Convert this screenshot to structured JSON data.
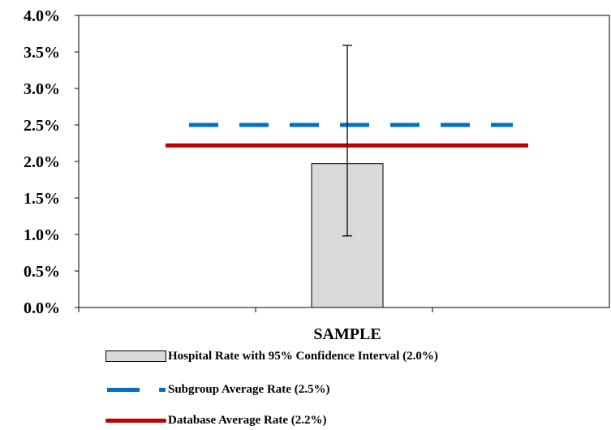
{
  "chart_data": {
    "type": "bar",
    "title": "",
    "xlabel": "",
    "ylabel": "",
    "categories": [
      "SAMPLE"
    ],
    "ylim": [
      0,
      4.0
    ],
    "y_ticks": [
      "0.0%",
      "0.5%",
      "1.0%",
      "1.5%",
      "2.0%",
      "2.5%",
      "3.0%",
      "3.5%",
      "4.0%"
    ],
    "grid": false,
    "legend_position": "bottom",
    "series": [
      {
        "name": "Hospital Rate with 95% Confidence Interval (2.0%)",
        "kind": "bar",
        "values": [
          1.97
        ],
        "ci_low": [
          0.98
        ],
        "ci_high": [
          3.59
        ],
        "color": "#d9d9d9"
      },
      {
        "name": "Subgroup Average Rate (2.5%)",
        "kind": "reference-line",
        "style": "dashed",
        "value": 2.5,
        "color": "#0070c0"
      },
      {
        "name": "Database Average Rate (2.2%)",
        "kind": "reference-line",
        "style": "solid",
        "value": 2.22,
        "color": "#c00000"
      }
    ]
  }
}
